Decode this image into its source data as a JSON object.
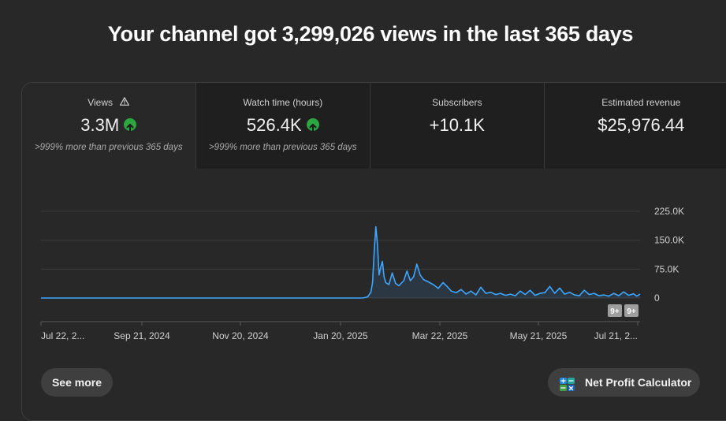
{
  "header": {
    "title": "Your channel got 3,299,026 views in the last 365 days"
  },
  "tabs": [
    {
      "label": "Views",
      "value": "3.3M",
      "sub": ">999% more than previous 365 days",
      "icon": "warning-icon",
      "trend": "up"
    },
    {
      "label": "Watch time (hours)",
      "value": "526.4K",
      "sub": ">999% more than previous 365 days",
      "trend": "up"
    },
    {
      "label": "Subscribers",
      "value": "+10.1K",
      "sub": ""
    },
    {
      "label": "Estimated revenue",
      "value": "$25,976.44",
      "sub": ""
    }
  ],
  "buttons": {
    "see_more": "See more",
    "net_profit": "Net Profit Calculator"
  },
  "badges": [
    "9+",
    "9+"
  ],
  "colors": {
    "line": "#3ea6ff",
    "up": "#2ba640",
    "background": "#282828"
  },
  "chart_data": {
    "type": "line",
    "title": "",
    "xlabel": "",
    "ylabel": "",
    "x_tick_labels": [
      "Jul 22, 2...",
      "Sep 21, 2024",
      "Nov 20, 2024",
      "Jan 20, 2025",
      "Mar 22, 2025",
      "May 21, 2025",
      "Jul 21, 2..."
    ],
    "y_tick_labels": [
      "225.0K",
      "150.0K",
      "75.0K",
      "0"
    ],
    "ylim": [
      0,
      225000
    ],
    "x_start": "2024-07-22",
    "x_end": "2025-07-22",
    "grid": true,
    "series": [
      {
        "values": [
          [
            "2024-07-22",
            0
          ],
          [
            "2024-10-15",
            0
          ],
          [
            "2025-01-20",
            0
          ],
          [
            "2025-02-03",
            0
          ],
          [
            "2025-02-06",
            3000
          ],
          [
            "2025-02-08",
            15000
          ],
          [
            "2025-02-09",
            40000
          ],
          [
            "2025-02-10",
            120000
          ],
          [
            "2025-02-11",
            185000
          ],
          [
            "2025-02-12",
            140000
          ],
          [
            "2025-02-13",
            60000
          ],
          [
            "2025-02-14",
            80000
          ],
          [
            "2025-02-15",
            95000
          ],
          [
            "2025-02-16",
            55000
          ],
          [
            "2025-02-17",
            40000
          ],
          [
            "2025-02-19",
            35000
          ],
          [
            "2025-02-21",
            65000
          ],
          [
            "2025-02-23",
            38000
          ],
          [
            "2025-02-25",
            32000
          ],
          [
            "2025-02-28",
            45000
          ],
          [
            "2025-03-02",
            70000
          ],
          [
            "2025-03-04",
            45000
          ],
          [
            "2025-03-06",
            55000
          ],
          [
            "2025-03-08",
            88000
          ],
          [
            "2025-03-10",
            60000
          ],
          [
            "2025-03-12",
            48000
          ],
          [
            "2025-03-15",
            42000
          ],
          [
            "2025-03-18",
            35000
          ],
          [
            "2025-03-21",
            25000
          ],
          [
            "2025-03-24",
            40000
          ],
          [
            "2025-03-26",
            32000
          ],
          [
            "2025-03-29",
            18000
          ],
          [
            "2025-04-01",
            14000
          ],
          [
            "2025-04-04",
            22000
          ],
          [
            "2025-04-07",
            10000
          ],
          [
            "2025-04-10",
            18000
          ],
          [
            "2025-04-13",
            8000
          ],
          [
            "2025-04-16",
            28000
          ],
          [
            "2025-04-19",
            12000
          ],
          [
            "2025-04-22",
            15000
          ],
          [
            "2025-04-25",
            9000
          ],
          [
            "2025-04-28",
            12000
          ],
          [
            "2025-05-01",
            7000
          ],
          [
            "2025-05-04",
            10000
          ],
          [
            "2025-05-07",
            6000
          ],
          [
            "2025-05-10",
            18000
          ],
          [
            "2025-05-13",
            9000
          ],
          [
            "2025-05-16",
            20000
          ],
          [
            "2025-05-19",
            7000
          ],
          [
            "2025-05-22",
            12000
          ],
          [
            "2025-05-25",
            14000
          ],
          [
            "2025-05-28",
            30000
          ],
          [
            "2025-05-31",
            12000
          ],
          [
            "2025-06-03",
            26000
          ],
          [
            "2025-06-06",
            10000
          ],
          [
            "2025-06-09",
            15000
          ],
          [
            "2025-06-12",
            8000
          ],
          [
            "2025-06-15",
            6000
          ],
          [
            "2025-06-18",
            20000
          ],
          [
            "2025-06-21",
            9000
          ],
          [
            "2025-06-24",
            12000
          ],
          [
            "2025-06-27",
            6000
          ],
          [
            "2025-06-30",
            8000
          ],
          [
            "2025-07-03",
            5000
          ],
          [
            "2025-07-06",
            12000
          ],
          [
            "2025-07-09",
            6000
          ],
          [
            "2025-07-12",
            16000
          ],
          [
            "2025-07-15",
            7000
          ],
          [
            "2025-07-18",
            11000
          ],
          [
            "2025-07-20",
            5000
          ],
          [
            "2025-07-22",
            10000
          ]
        ]
      }
    ]
  }
}
